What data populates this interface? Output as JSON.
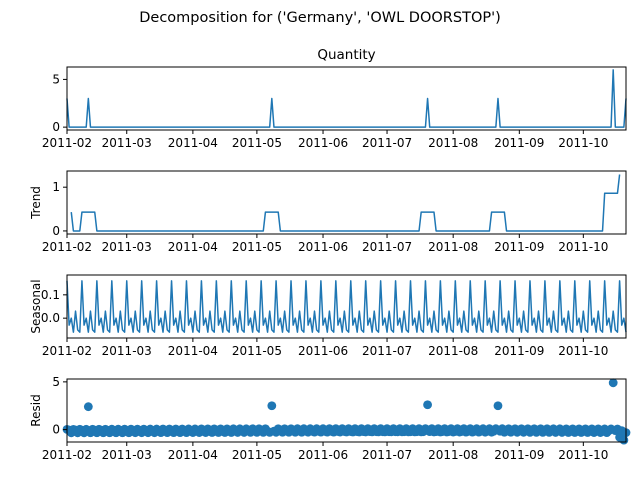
{
  "figure": {
    "title": "Decomposition for ('Germany', 'OWL DOORSTOP')"
  },
  "colors": {
    "line": "#1f77b4",
    "axis": "#000000",
    "zero_line": "#000000"
  },
  "x_tick_labels": [
    "2011-02",
    "2011-03",
    "2011-04",
    "2011-05",
    "2011-06",
    "2011-07",
    "2011-08",
    "2011-09",
    "2011-10"
  ],
  "chart_data": [
    {
      "type": "line",
      "panel": "observed",
      "title": "Quantity",
      "ylabel": "",
      "x_range": [
        "2011-02-01",
        "2011-10-21"
      ],
      "ylim": [
        -0.3,
        6.3
      ],
      "yticks": [
        0,
        5
      ],
      "ytick_labels": [
        "0",
        "5"
      ],
      "spikes": [
        {
          "date": "2011-02-01",
          "value": 3
        },
        {
          "date": "2011-02-11",
          "value": 3
        },
        {
          "date": "2011-05-08",
          "value": 3
        },
        {
          "date": "2011-07-20",
          "value": 3
        },
        {
          "date": "2011-08-22",
          "value": 3
        },
        {
          "date": "2011-10-15",
          "value": 6
        },
        {
          "date": "2011-10-21",
          "value": 3
        }
      ]
    },
    {
      "type": "line",
      "panel": "trend",
      "title": "",
      "ylabel": "Trend",
      "ylim": [
        -0.07,
        1.37
      ],
      "yticks": [
        0,
        1
      ],
      "ytick_labels": [
        "0",
        "1"
      ],
      "points": [
        {
          "x": "2011-02-03",
          "y": 0.43
        },
        {
          "x": "2011-02-04",
          "y": 0.0
        },
        {
          "x": "2011-02-07",
          "y": 0.0
        },
        {
          "x": "2011-02-08",
          "y": 0.43
        },
        {
          "x": "2011-02-14",
          "y": 0.43
        },
        {
          "x": "2011-02-15",
          "y": 0.0
        },
        {
          "x": "2011-05-04",
          "y": 0.0
        },
        {
          "x": "2011-05-05",
          "y": 0.43
        },
        {
          "x": "2011-05-11",
          "y": 0.43
        },
        {
          "x": "2011-05-12",
          "y": 0.0
        },
        {
          "x": "2011-07-16",
          "y": 0.0
        },
        {
          "x": "2011-07-17",
          "y": 0.43
        },
        {
          "x": "2011-07-23",
          "y": 0.43
        },
        {
          "x": "2011-07-24",
          "y": 0.0
        },
        {
          "x": "2011-08-18",
          "y": 0.0
        },
        {
          "x": "2011-08-19",
          "y": 0.43
        },
        {
          "x": "2011-08-25",
          "y": 0.43
        },
        {
          "x": "2011-08-26",
          "y": 0.0
        },
        {
          "x": "2011-10-10",
          "y": 0.0
        },
        {
          "x": "2011-10-11",
          "y": 0.86
        },
        {
          "x": "2011-10-17",
          "y": 0.86
        },
        {
          "x": "2011-10-18",
          "y": 1.29
        }
      ]
    },
    {
      "type": "line",
      "panel": "seasonal",
      "title": "",
      "ylabel": "Seasonal",
      "ylim": [
        -0.085,
        0.185
      ],
      "yticks": [
        0.0,
        0.1
      ],
      "ytick_labels": [
        "0.0",
        "0.1"
      ],
      "period_days": 7,
      "weekly_pattern": [
        0.16,
        -0.03,
        0.0,
        -0.06,
        0.03,
        -0.05,
        -0.06
      ]
    },
    {
      "type": "scatter",
      "panel": "resid",
      "title": "",
      "ylabel": "Resid",
      "ylim": [
        -1.3,
        5.3
      ],
      "yticks": [
        0,
        5
      ],
      "ytick_labels": [
        "0",
        "5"
      ],
      "baseline_value": 0,
      "outliers": [
        {
          "x": "2011-02-11",
          "y": 2.4
        },
        {
          "x": "2011-05-08",
          "y": 2.5
        },
        {
          "x": "2011-07-20",
          "y": 2.6
        },
        {
          "x": "2011-08-22",
          "y": 2.5
        },
        {
          "x": "2011-10-15",
          "y": 4.9
        },
        {
          "x": "2011-10-18",
          "y": -0.8
        },
        {
          "x": "2011-10-20",
          "y": -1.1
        }
      ]
    }
  ]
}
